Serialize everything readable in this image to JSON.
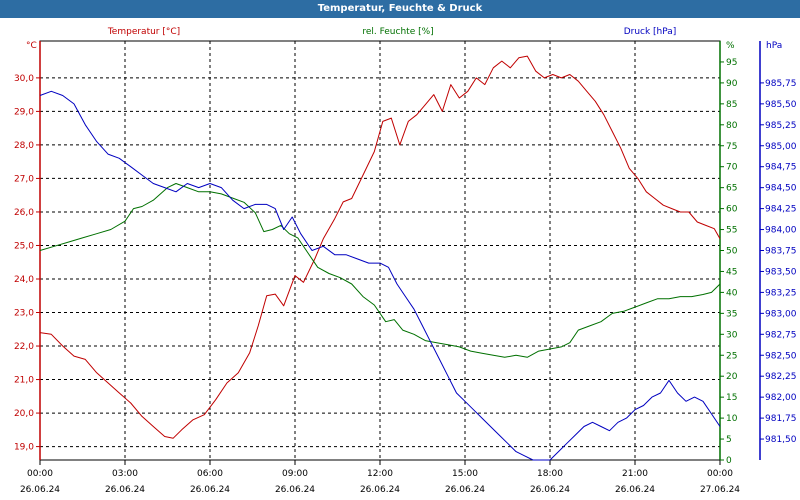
{
  "window": {
    "title": "Temperatur, Feuchte & Druck"
  },
  "chart_data": {
    "type": "line",
    "title": "Temperatur, Feuchte & Druck",
    "grid": true,
    "x": {
      "ticks": [
        {
          "time": "00:00",
          "date": "26.06.24"
        },
        {
          "time": "03:00",
          "date": "26.06.24"
        },
        {
          "time": "06:00",
          "date": "26.06.24"
        },
        {
          "time": "09:00",
          "date": "26.06.24"
        },
        {
          "time": "12:00",
          "date": "26.06.24"
        },
        {
          "time": "15:00",
          "date": "26.06.24"
        },
        {
          "time": "18:00",
          "date": "26.06.24"
        },
        {
          "time": "21:00",
          "date": "26.06.24"
        },
        {
          "time": "00:00",
          "date": "27.06.24"
        }
      ],
      "range_hours": [
        0,
        24
      ]
    },
    "axes": {
      "temperature": {
        "label": "Temperatur [°C]",
        "unit": "°C",
        "min": 18.6,
        "max": 31.1,
        "ticks": [
          "19,0",
          "20,0",
          "21,0",
          "22,0",
          "23,0",
          "24,0",
          "25,0",
          "26,0",
          "27,0",
          "28,0",
          "29,0",
          "30,0"
        ],
        "color": "#c00000"
      },
      "humidity": {
        "label": "rel. Feuchte [%]",
        "unit": "%",
        "min": 0,
        "max": 100,
        "ticks": [
          "0",
          "5",
          "10",
          "15",
          "20",
          "25",
          "30",
          "35",
          "40",
          "45",
          "50",
          "55",
          "60",
          "65",
          "70",
          "75",
          "80",
          "85",
          "90",
          "95"
        ],
        "color": "#007000"
      },
      "pressure": {
        "label": "Druck [hPa]",
        "unit": "hPa",
        "min": 981.25,
        "max": 986.25,
        "ticks": [
          "981,50",
          "981,75",
          "982,00",
          "982,25",
          "982,50",
          "982,75",
          "983,00",
          "983,25",
          "983,50",
          "983,75",
          "984,00",
          "984,25",
          "984,50",
          "984,75",
          "985,00",
          "985,25",
          "985,50",
          "985,75"
        ],
        "color": "#0000c0"
      }
    },
    "series": [
      {
        "name": "Temperatur [°C]",
        "axis": "temperature",
        "color": "#c00000",
        "points": [
          [
            0,
            22.4
          ],
          [
            0.4,
            22.35
          ],
          [
            0.8,
            22.0
          ],
          [
            1.2,
            21.7
          ],
          [
            1.6,
            21.6
          ],
          [
            2.0,
            21.2
          ],
          [
            2.4,
            20.9
          ],
          [
            2.8,
            20.6
          ],
          [
            3.2,
            20.3
          ],
          [
            3.6,
            19.9
          ],
          [
            4.0,
            19.6
          ],
          [
            4.4,
            19.3
          ],
          [
            4.7,
            19.25
          ],
          [
            5.0,
            19.5
          ],
          [
            5.4,
            19.8
          ],
          [
            5.8,
            19.95
          ],
          [
            6.2,
            20.4
          ],
          [
            6.6,
            20.9
          ],
          [
            7.0,
            21.2
          ],
          [
            7.4,
            21.8
          ],
          [
            7.7,
            22.6
          ],
          [
            8.0,
            23.5
          ],
          [
            8.3,
            23.55
          ],
          [
            8.6,
            23.2
          ],
          [
            9.0,
            24.1
          ],
          [
            9.3,
            23.9
          ],
          [
            9.7,
            24.6
          ],
          [
            10.0,
            25.2
          ],
          [
            10.4,
            25.8
          ],
          [
            10.7,
            26.3
          ],
          [
            11.0,
            26.4
          ],
          [
            11.4,
            27.1
          ],
          [
            11.8,
            27.8
          ],
          [
            12.1,
            28.7
          ],
          [
            12.4,
            28.8
          ],
          [
            12.7,
            28.0
          ],
          [
            13.0,
            28.7
          ],
          [
            13.3,
            28.9
          ],
          [
            13.6,
            29.2
          ],
          [
            13.9,
            29.5
          ],
          [
            14.2,
            29.0
          ],
          [
            14.5,
            29.8
          ],
          [
            14.8,
            29.4
          ],
          [
            15.1,
            29.6
          ],
          [
            15.4,
            30.0
          ],
          [
            15.7,
            29.8
          ],
          [
            16.0,
            30.3
          ],
          [
            16.3,
            30.5
          ],
          [
            16.6,
            30.3
          ],
          [
            16.9,
            30.6
          ],
          [
            17.2,
            30.65
          ],
          [
            17.5,
            30.2
          ],
          [
            17.8,
            30.0
          ],
          [
            18.1,
            30.1
          ],
          [
            18.4,
            30.0
          ],
          [
            18.7,
            30.1
          ],
          [
            19.0,
            29.9
          ],
          [
            19.3,
            29.6
          ],
          [
            19.6,
            29.3
          ],
          [
            19.9,
            28.9
          ],
          [
            20.2,
            28.4
          ],
          [
            20.5,
            27.9
          ],
          [
            20.8,
            27.3
          ],
          [
            21.1,
            27.0
          ],
          [
            21.4,
            26.6
          ],
          [
            21.7,
            26.4
          ],
          [
            22.0,
            26.2
          ],
          [
            22.3,
            26.1
          ],
          [
            22.6,
            26.0
          ],
          [
            22.9,
            26.0
          ],
          [
            23.2,
            25.7
          ],
          [
            23.5,
            25.6
          ],
          [
            23.8,
            25.5
          ],
          [
            24.0,
            25.2
          ]
        ]
      },
      {
        "name": "rel. Feuchte [%]",
        "axis": "humidity",
        "color": "#007000",
        "points": [
          [
            0,
            50
          ],
          [
            0.5,
            51
          ],
          [
            1.0,
            52
          ],
          [
            1.5,
            53
          ],
          [
            2.0,
            54
          ],
          [
            2.5,
            55
          ],
          [
            3.0,
            57
          ],
          [
            3.3,
            60
          ],
          [
            3.6,
            60.5
          ],
          [
            4.0,
            62
          ],
          [
            4.5,
            65
          ],
          [
            4.8,
            66
          ],
          [
            5.2,
            65
          ],
          [
            5.6,
            64
          ],
          [
            6.0,
            64
          ],
          [
            6.4,
            63.5
          ],
          [
            6.8,
            62.5
          ],
          [
            7.2,
            61.5
          ],
          [
            7.6,
            59
          ],
          [
            7.9,
            54.5
          ],
          [
            8.2,
            55
          ],
          [
            8.5,
            56
          ],
          [
            8.8,
            54
          ],
          [
            9.1,
            53
          ],
          [
            9.4,
            50
          ],
          [
            9.8,
            46
          ],
          [
            10.2,
            44.5
          ],
          [
            10.6,
            43.5
          ],
          [
            11.0,
            42
          ],
          [
            11.4,
            39
          ],
          [
            11.8,
            37
          ],
          [
            12.2,
            33
          ],
          [
            12.5,
            33.5
          ],
          [
            12.8,
            31
          ],
          [
            13.2,
            30
          ],
          [
            13.6,
            28.5
          ],
          [
            14.0,
            28
          ],
          [
            14.4,
            27.5
          ],
          [
            14.8,
            27
          ],
          [
            15.2,
            26
          ],
          [
            15.6,
            25.5
          ],
          [
            16.0,
            25
          ],
          [
            16.4,
            24.5
          ],
          [
            16.8,
            25
          ],
          [
            17.2,
            24.5
          ],
          [
            17.6,
            26
          ],
          [
            18.0,
            26.5
          ],
          [
            18.4,
            27
          ],
          [
            18.7,
            28
          ],
          [
            19.0,
            31
          ],
          [
            19.4,
            32
          ],
          [
            19.8,
            33
          ],
          [
            20.2,
            35
          ],
          [
            20.6,
            35.5
          ],
          [
            21.0,
            36.5
          ],
          [
            21.4,
            37.5
          ],
          [
            21.8,
            38.5
          ],
          [
            22.2,
            38.5
          ],
          [
            22.6,
            39
          ],
          [
            23.0,
            39
          ],
          [
            23.4,
            39.5
          ],
          [
            23.7,
            40
          ],
          [
            24.0,
            42
          ]
        ]
      },
      {
        "name": "Druck [hPa]",
        "axis": "pressure",
        "color": "#0000c0",
        "points": [
          [
            0,
            985.6
          ],
          [
            0.4,
            985.65
          ],
          [
            0.8,
            985.6
          ],
          [
            1.2,
            985.5
          ],
          [
            1.6,
            985.25
          ],
          [
            2.0,
            985.05
          ],
          [
            2.4,
            984.9
          ],
          [
            2.8,
            984.85
          ],
          [
            3.2,
            984.75
          ],
          [
            3.6,
            984.65
          ],
          [
            4.0,
            984.55
          ],
          [
            4.4,
            984.5
          ],
          [
            4.8,
            984.45
          ],
          [
            5.2,
            984.55
          ],
          [
            5.6,
            984.5
          ],
          [
            6.0,
            984.55
          ],
          [
            6.4,
            984.5
          ],
          [
            6.8,
            984.35
          ],
          [
            7.2,
            984.25
          ],
          [
            7.6,
            984.3
          ],
          [
            8.0,
            984.3
          ],
          [
            8.3,
            984.25
          ],
          [
            8.6,
            984.0
          ],
          [
            8.9,
            984.15
          ],
          [
            9.2,
            983.95
          ],
          [
            9.6,
            983.75
          ],
          [
            10.0,
            983.8
          ],
          [
            10.4,
            983.7
          ],
          [
            10.8,
            983.7
          ],
          [
            11.2,
            983.65
          ],
          [
            11.6,
            983.6
          ],
          [
            12.0,
            983.6
          ],
          [
            12.3,
            983.55
          ],
          [
            12.6,
            983.35
          ],
          [
            12.9,
            983.2
          ],
          [
            13.2,
            983.05
          ],
          [
            13.5,
            982.85
          ],
          [
            13.8,
            982.65
          ],
          [
            14.1,
            982.45
          ],
          [
            14.4,
            982.25
          ],
          [
            14.7,
            982.05
          ],
          [
            15.0,
            981.95
          ],
          [
            15.3,
            981.85
          ],
          [
            15.6,
            981.75
          ],
          [
            15.9,
            981.65
          ],
          [
            16.2,
            981.55
          ],
          [
            16.5,
            981.45
          ],
          [
            16.8,
            981.35
          ],
          [
            17.1,
            981.3
          ],
          [
            17.4,
            981.25
          ],
          [
            17.7,
            981.25
          ],
          [
            18.0,
            981.25
          ],
          [
            18.3,
            981.35
          ],
          [
            18.6,
            981.45
          ],
          [
            18.9,
            981.55
          ],
          [
            19.2,
            981.65
          ],
          [
            19.5,
            981.7
          ],
          [
            19.8,
            981.65
          ],
          [
            20.1,
            981.6
          ],
          [
            20.4,
            981.7
          ],
          [
            20.7,
            981.75
          ],
          [
            21.0,
            981.85
          ],
          [
            21.3,
            981.9
          ],
          [
            21.6,
            982.0
          ],
          [
            21.9,
            982.05
          ],
          [
            22.2,
            982.2
          ],
          [
            22.5,
            982.05
          ],
          [
            22.8,
            981.95
          ],
          [
            23.1,
            982.0
          ],
          [
            23.4,
            981.95
          ],
          [
            23.7,
            981.8
          ],
          [
            24.0,
            981.65
          ]
        ]
      }
    ]
  }
}
